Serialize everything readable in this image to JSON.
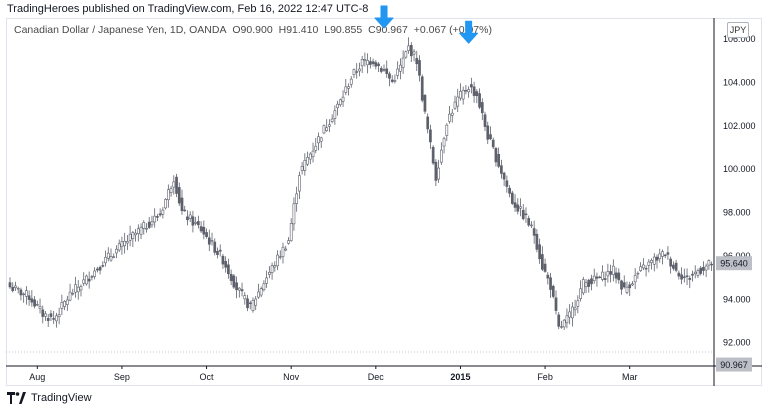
{
  "header": {
    "attribution": "TradingHeroes published on TradingView.com, Feb 16, 2022 12:47 UTC-8"
  },
  "legend": {
    "instrument": "Canadian Dollar / Japanese Yen, 1D, OANDA",
    "open": "O90.900",
    "high": "H91.410",
    "low": "L90.855",
    "close": "C90.967",
    "change": "+0.067 (+0.07%)"
  },
  "currency_tag": "JPY",
  "footer": {
    "brand": "TradingView"
  },
  "colors": {
    "candle_outline": "#5d606b",
    "down_fill": "#5d606b",
    "up_fill": "#ffffff",
    "arrow": "#2196f3",
    "price_tag_bg": "#bdbfc7"
  },
  "chart_data": {
    "type": "candlestick",
    "ylim": [
      90.9,
      106.9
    ],
    "y_ticks": [
      "92.000",
      "94.000",
      "96.000",
      "98.000",
      "100.000",
      "102.000",
      "104.000",
      "106.000"
    ],
    "y_tick_values": [
      92,
      94,
      96,
      98,
      100,
      102,
      104,
      106
    ],
    "x_tick_labels": [
      "Aug",
      "Sep",
      "Oct",
      "Nov",
      "Dec",
      "2015",
      "Feb",
      "Mar"
    ],
    "x_tick_index": [
      10,
      41,
      72,
      103,
      134,
      165,
      196,
      227
    ],
    "last_price_label": "95.640",
    "last_price": 95.64,
    "current_close_label": "90.967",
    "current_close": 90.967,
    "markers": [
      {
        "type": "down-arrow",
        "index": 137,
        "price": 106.3
      },
      {
        "type": "down-arrow",
        "index": 168,
        "price": 105.6
      }
    ],
    "anchors": [
      [
        0,
        94.55
      ],
      [
        7,
        94.1
      ],
      [
        12,
        93.3
      ],
      [
        16,
        93.05
      ],
      [
        22,
        94.2
      ],
      [
        28,
        94.9
      ],
      [
        35,
        95.8
      ],
      [
        45,
        96.9
      ],
      [
        55,
        97.9
      ],
      [
        60,
        99.6
      ],
      [
        63,
        98.0
      ],
      [
        70,
        97.2
      ],
      [
        78,
        95.8
      ],
      [
        83,
        94.5
      ],
      [
        88,
        93.6
      ],
      [
        94,
        95.0
      ],
      [
        102,
        96.7
      ],
      [
        106,
        99.8
      ],
      [
        114,
        101.6
      ],
      [
        121,
        103.1
      ],
      [
        125,
        104.2
      ],
      [
        129,
        104.9
      ],
      [
        133,
        105.0
      ],
      [
        137,
        104.5
      ],
      [
        140,
        104.0
      ],
      [
        143,
        104.7
      ],
      [
        146,
        105.6
      ],
      [
        149,
        105.0
      ],
      [
        152,
        102.5
      ],
      [
        156,
        99.6
      ],
      [
        160,
        102.2
      ],
      [
        164,
        103.2
      ],
      [
        168,
        103.8
      ],
      [
        171,
        103.4
      ],
      [
        175,
        101.5
      ],
      [
        179,
        100.2
      ],
      [
        184,
        98.5
      ],
      [
        189,
        97.7
      ],
      [
        192,
        97.0
      ],
      [
        195,
        95.5
      ],
      [
        198,
        94.6
      ],
      [
        201,
        92.6
      ],
      [
        205,
        93.2
      ],
      [
        210,
        94.7
      ],
      [
        215,
        94.9
      ],
      [
        221,
        95.3
      ],
      [
        225,
        94.4
      ],
      [
        231,
        95.3
      ],
      [
        236,
        95.8
      ],
      [
        240,
        96.1
      ],
      [
        244,
        95.3
      ],
      [
        248,
        94.9
      ],
      [
        252,
        95.3
      ],
      [
        257,
        95.64
      ]
    ]
  }
}
